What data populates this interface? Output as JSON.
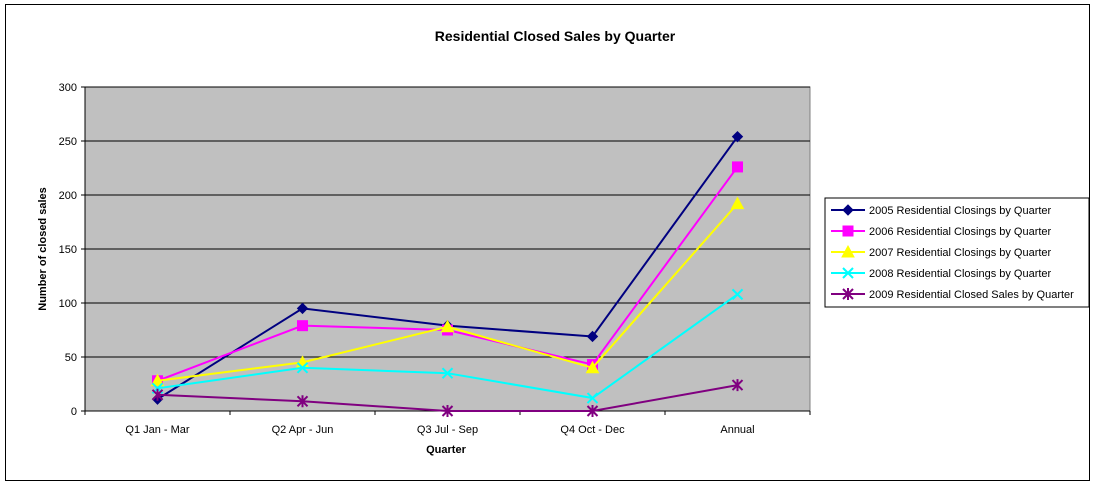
{
  "chart_data": {
    "type": "line",
    "title": "Residential Closed Sales by Quarter",
    "xlabel": "Quarter",
    "ylabel": "Number of closed sales",
    "categories": [
      "Q1 Jan - Mar",
      "Q2 Apr - Jun",
      "Q3 Jul - Sep",
      "Q4 Oct - Dec",
      "Annual"
    ],
    "ylim": [
      0,
      300
    ],
    "yticks": [
      0,
      50,
      100,
      150,
      200,
      250,
      300
    ],
    "grid": true,
    "legend": "right",
    "series": [
      {
        "name": "2005 Residential Closings by Quarter",
        "values": [
          11,
          95,
          79,
          69,
          254
        ],
        "color": "#000080",
        "marker": "diamond"
      },
      {
        "name": "2006 Residential Closings by Quarter",
        "values": [
          28,
          79,
          75,
          43,
          226
        ],
        "color": "#FF00FF",
        "marker": "square"
      },
      {
        "name": "2007 Residential Closings by Quarter",
        "values": [
          28,
          45,
          78,
          40,
          192
        ],
        "color": "#FFFF00",
        "marker": "triangle"
      },
      {
        "name": "2008 Residential Closings by Quarter",
        "values": [
          21,
          40,
          35,
          12,
          108
        ],
        "color": "#00FFFF",
        "marker": "x"
      },
      {
        "name": "2009 Residential Closed Sales by Quarter",
        "values": [
          15,
          9,
          0,
          0,
          24
        ],
        "color": "#800080",
        "marker": "star"
      }
    ],
    "plot_background": "#C0C0C0"
  }
}
